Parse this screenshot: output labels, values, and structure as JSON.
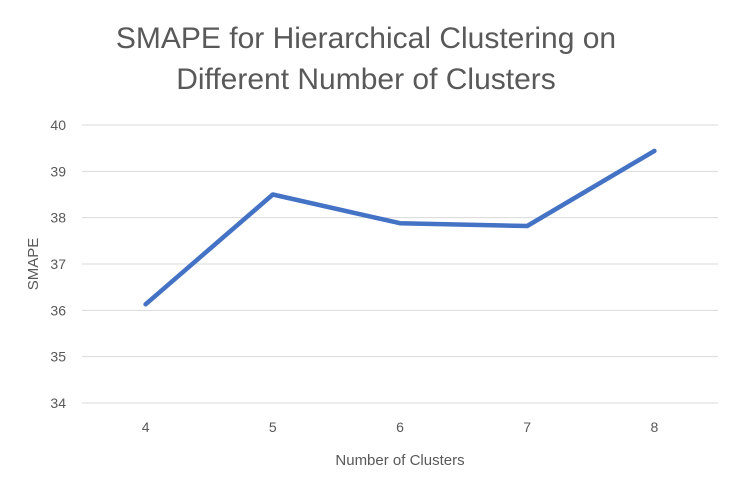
{
  "chart_data": {
    "type": "line",
    "title_lines": [
      "SMAPE  for Hierarchical Clustering on",
      "Different Number of Clusters"
    ],
    "xlabel": "Number of Clusters",
    "ylabel": "SMAPE",
    "categories": [
      "4",
      "5",
      "6",
      "7",
      "8"
    ],
    "series": [
      {
        "values": [
          36.13,
          38.5,
          37.88,
          37.82,
          39.44
        ],
        "color": "#4472C4"
      }
    ],
    "ylim": [
      34,
      40
    ],
    "yticks": [
      "34",
      "35",
      "36",
      "37",
      "38",
      "39",
      "40"
    ],
    "grid": true,
    "grid_color": "#D9D9D9",
    "legend": "none"
  }
}
